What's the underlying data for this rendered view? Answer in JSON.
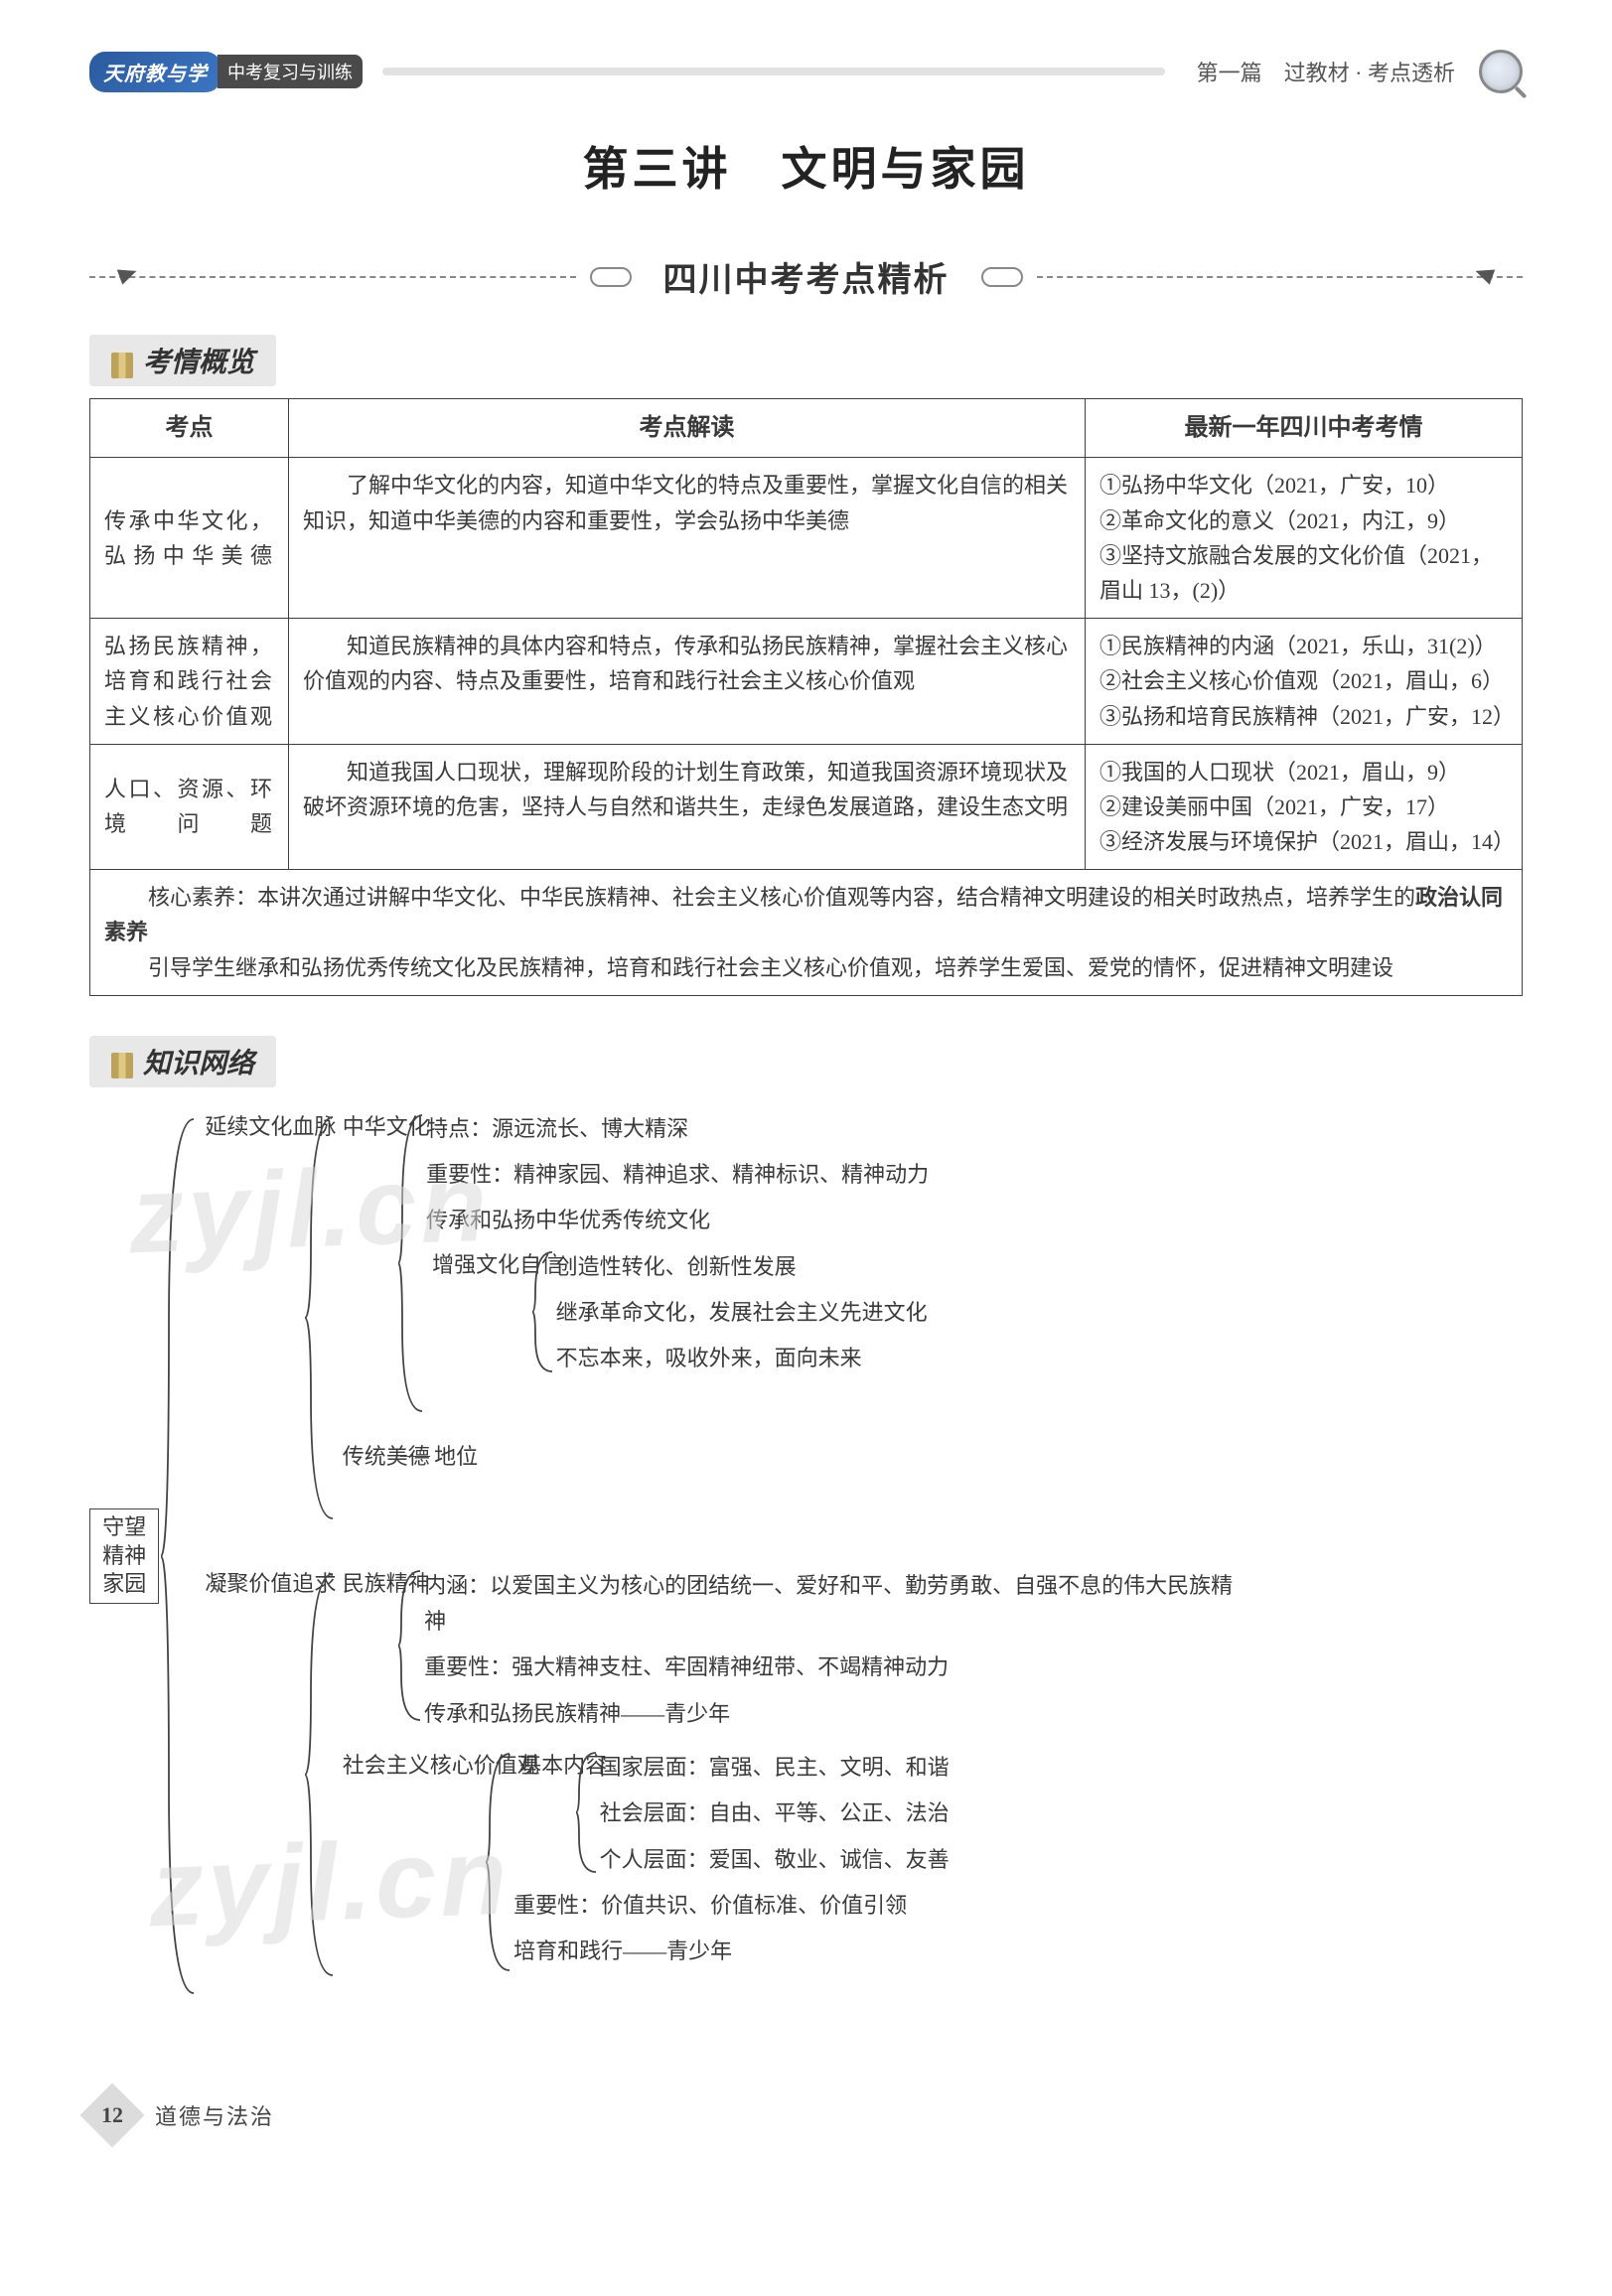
{
  "header": {
    "logo_main": "天府教与学",
    "logo_sub": "中考复习与训练",
    "breadcrumb": "第一篇　过教材 · 考点透析"
  },
  "title": "第三讲　文明与家园",
  "subtitle": "四川中考考点精析",
  "section1_label": "考情概览",
  "section2_label": "知识网络",
  "table": {
    "headers": [
      "考点",
      "考点解读",
      "最新一年四川中考考情"
    ],
    "rows": [
      {
        "key": "传承中华文化，弘扬中华美德",
        "desc": "　　了解中华文化的内容，知道中华文化的特点及重要性，掌握文化自信的相关知识，知道中华美德的内容和重要性，学会弘扬中华美德",
        "exam": "①弘扬中华文化（2021，广安，10）\n②革命文化的意义（2021，内江，9）\n③坚持文旅融合发展的文化价值（2021，眉山 13，(2)）"
      },
      {
        "key": "弘扬民族精神，培育和践行社会主义核心价值观",
        "desc": "　　知道民族精神的具体内容和特点，传承和弘扬民族精神，掌握社会主义核心价值观的内容、特点及重要性，培育和践行社会主义核心价值观",
        "exam": "①民族精神的内涵（2021，乐山，31(2)）\n②社会主义核心价值观（2021，眉山，6）\n③弘扬和培育民族精神（2021，广安，12）"
      },
      {
        "key": "人口、资源、环境问题",
        "desc": "　　知道我国人口现状，理解现阶段的计划生育政策，知道我国资源环境现状及破坏资源环境的危害，坚持人与自然和谐共生，走绿色发展道路，建设生态文明",
        "exam": "①我国的人口现状（2021，眉山，9）\n②建设美丽中国（2021，广安，17）\n③经济发展与环境保护（2021，眉山，14）"
      }
    ],
    "footnote1_prefix": "　　核心素养：本讲次通过讲解中华文化、中华民族精神、社会主义核心价值观等内容，结合精神文明建设的相关时政热点，培养学生的",
    "footnote1_bold": "政治认同素养",
    "footnote2": "　　引导学生继承和弘扬优秀传统文化及民族精神，培育和践行社会主义核心价值观，培养学生爱国、爱党的情怀，促进精神文明建设"
  },
  "map": {
    "root": "守望精神家园",
    "branch1": {
      "label": "延续文化血脉",
      "sub1": {
        "label": "中华文化",
        "items": [
          "特点：源远流长、博大精深",
          "重要性：精神家园、精神追求、精神标识、精神动力",
          "传承和弘扬中华优秀传统文化"
        ],
        "sub": {
          "label": "增强文化自信",
          "items": [
            "创造性转化、创新性发展",
            "继承革命文化，发展社会主义先进文化",
            "不忘本来，吸收外来，面向未来"
          ]
        }
      },
      "sub2": {
        "label": "传统美德",
        "tail": "地位"
      }
    },
    "branch2": {
      "label": "凝聚价值追求",
      "sub1": {
        "label": "民族精神",
        "items": [
          "内涵：以爱国主义为核心的团结统一、爱好和平、勤劳勇敢、自强不息的伟大民族精神",
          "重要性：强大精神支柱、牢固精神纽带、不竭精神动力",
          "传承和弘扬民族精神——青少年"
        ]
      },
      "sub2": {
        "label": "社会主义核心价值观",
        "sub": {
          "label": "基本内容",
          "items": [
            "国家层面：富强、民主、文明、和谐",
            "社会层面：自由、平等、公正、法治",
            "个人层面：爱国、敬业、诚信、友善"
          ]
        },
        "tail_items": [
          "重要性：价值共识、价值标准、价值引领",
          "培育和践行——青少年"
        ]
      }
    }
  },
  "watermark": "zyjl.cn",
  "footer": {
    "page": "12",
    "label": "道德与法治"
  }
}
